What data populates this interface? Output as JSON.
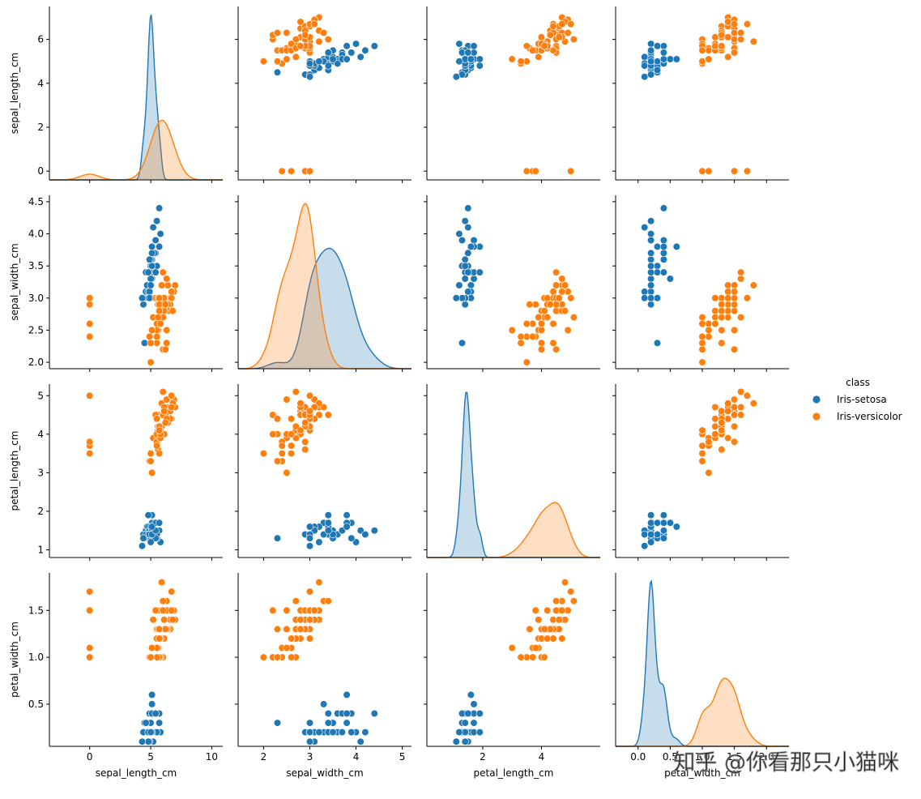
{
  "chart_data": {
    "type": "pairplot",
    "variables": [
      "sepal_length_cm",
      "sepal_width_cm",
      "petal_length_cm",
      "petal_width_cm"
    ],
    "axis_ticks": {
      "sepal_length_cm": {
        "range": [
          -3.3,
          10.9
        ],
        "ticks": [
          0,
          5,
          10
        ],
        "yrange": [
          -0.4,
          7.5
        ],
        "yticks": [
          0,
          2,
          4,
          6
        ]
      },
      "sepal_width_cm": {
        "range": [
          1.45,
          5.2
        ],
        "ticks": [
          2,
          3,
          4,
          5
        ],
        "yrange": [
          1.9,
          4.6
        ],
        "yticks": [
          2.0,
          2.5,
          3.0,
          3.5,
          4.0,
          4.5
        ]
      },
      "petal_length_cm": {
        "range": [
          0.1,
          6.0
        ],
        "ticks": [
          2,
          4
        ],
        "yrange": [
          0.8,
          5.3
        ],
        "yticks": [
          1,
          2,
          3,
          4,
          5
        ]
      },
      "petal_width_cm": {
        "range": [
          -0.35,
          2.35
        ],
        "ticks": [
          0.0,
          0.5,
          1.0,
          1.5,
          2.0
        ],
        "yrange": [
          0.05,
          1.9
        ],
        "yticks": [
          0.5,
          1.0,
          1.5
        ]
      }
    },
    "legend": {
      "title": "class",
      "position": "center-right"
    },
    "series": [
      {
        "name": "Iris-setosa",
        "color": "#1f77b4",
        "sepal_length_cm": [
          4.5,
          4.6,
          4.8,
          4.9,
          5.0,
          5.1,
          5.0,
          5.0,
          5.2,
          5.2,
          5.1,
          5.0,
          4.8,
          4.9,
          5.4,
          5.3,
          5.2,
          5.1,
          4.7,
          4.8,
          4.4,
          4.6,
          4.9,
          5.0,
          4.8,
          5.7,
          5.8,
          5.7,
          5.5,
          5.4,
          5.1,
          5.5,
          5.4,
          5.0,
          5.4,
          5.1,
          4.9,
          4.4,
          4.8,
          5.1,
          5.7,
          5.4,
          5.1,
          5.0,
          4.3
        ],
        "sepal_width_cm": [
          2.3,
          3.1,
          3.0,
          3.1,
          3.2,
          3.3,
          3.4,
          3.5,
          3.4,
          3.5,
          3.6,
          3.6,
          3.4,
          3.6,
          3.7,
          3.7,
          4.1,
          3.8,
          3.2,
          3.1,
          2.9,
          3.4,
          3.1,
          3.0,
          3.0,
          4.4,
          4.0,
          3.8,
          3.5,
          3.9,
          3.7,
          4.2,
          3.4,
          3.3,
          3.9,
          3.8,
          3.0,
          3.0,
          3.4,
          3.5,
          3.8,
          3.4,
          3.8,
          3.2,
          3.0
        ],
        "petal_length_cm": [
          1.3,
          1.5,
          1.4,
          1.5,
          1.2,
          1.7,
          1.5,
          1.3,
          1.4,
          1.5,
          1.4,
          1.4,
          1.6,
          1.4,
          1.5,
          1.5,
          1.5,
          1.9,
          1.6,
          1.6,
          1.4,
          1.4,
          1.5,
          1.6,
          1.4,
          1.5,
          1.2,
          1.7,
          1.3,
          1.7,
          1.5,
          1.4,
          1.7,
          1.4,
          1.3,
          1.9,
          1.4,
          1.3,
          1.9,
          1.4,
          1.7,
          1.5,
          1.6,
          1.2,
          1.1
        ],
        "petal_width_cm": [
          0.3,
          0.2,
          0.3,
          0.1,
          0.2,
          0.5,
          0.2,
          0.3,
          0.2,
          0.2,
          0.2,
          0.2,
          0.2,
          0.4,
          0.2,
          0.2,
          0.1,
          0.4,
          0.2,
          0.2,
          0.2,
          0.3,
          0.1,
          0.2,
          0.1,
          0.4,
          0.2,
          0.3,
          0.2,
          0.2,
          0.4,
          0.2,
          0.4,
          0.2,
          0.4,
          0.4,
          0.2,
          0.2,
          0.2,
          0.2,
          0.3,
          0.4,
          0.6,
          0.2,
          0.1
        ]
      },
      {
        "name": "Iris-versicolor",
        "color": "#ff7f0e",
        "sepal_length_cm": [
          0,
          0,
          0,
          0,
          7.0,
          6.4,
          6.9,
          5.5,
          6.5,
          5.7,
          6.3,
          4.9,
          6.6,
          5.2,
          5.0,
          5.9,
          6.0,
          6.1,
          5.6,
          6.7,
          5.6,
          5.8,
          6.2,
          5.6,
          5.9,
          6.1,
          6.3,
          6.1,
          6.4,
          6.6,
          6.8,
          6.7,
          6.0,
          5.7,
          5.5,
          5.5,
          5.8,
          6.0,
          5.4,
          6.0,
          6.7,
          6.3,
          5.6,
          5.5,
          5.5,
          6.1,
          5.8,
          5.0,
          5.6,
          5.7,
          5.7,
          6.2,
          5.1,
          5.7
        ],
        "sepal_width_cm": [
          2.4,
          2.6,
          2.9,
          3.0,
          3.2,
          3.2,
          3.1,
          2.3,
          2.8,
          2.8,
          3.3,
          2.4,
          2.9,
          2.7,
          2.0,
          3.0,
          2.2,
          2.9,
          2.9,
          3.1,
          3.0,
          2.7,
          2.2,
          2.5,
          3.2,
          2.8,
          2.5,
          2.8,
          2.9,
          3.0,
          2.8,
          3.0,
          2.9,
          2.6,
          2.4,
          2.4,
          2.7,
          2.7,
          3.0,
          3.4,
          3.1,
          2.3,
          3.0,
          2.5,
          2.6,
          3.0,
          2.6,
          2.3,
          2.7,
          3.0,
          2.9,
          2.9,
          2.5,
          2.8
        ],
        "petal_length_cm": [
          3.5,
          3.7,
          3.8,
          5.0,
          4.7,
          4.5,
          4.9,
          4.0,
          4.6,
          4.5,
          4.7,
          3.3,
          4.6,
          3.9,
          3.5,
          4.2,
          4.0,
          4.7,
          3.6,
          4.4,
          4.5,
          4.1,
          4.5,
          3.9,
          4.8,
          4.0,
          4.9,
          4.7,
          4.3,
          4.4,
          4.8,
          5.0,
          4.5,
          3.5,
          3.8,
          3.7,
          3.9,
          5.1,
          4.5,
          4.5,
          4.7,
          4.4,
          4.1,
          4.0,
          4.4,
          4.6,
          4.0,
          3.3,
          4.2,
          4.2,
          4.2,
          4.3,
          3.0,
          4.1
        ],
        "petal_width_cm": [
          1.0,
          1.1,
          1.5,
          1.7,
          1.4,
          1.5,
          1.5,
          1.3,
          1.5,
          1.3,
          1.6,
          1.0,
          1.3,
          1.4,
          1.0,
          1.5,
          1.0,
          1.4,
          1.3,
          1.4,
          1.5,
          1.0,
          1.5,
          1.1,
          1.8,
          1.3,
          1.5,
          1.2,
          1.3,
          1.4,
          1.4,
          1.7,
          1.5,
          1.0,
          1.1,
          1.0,
          1.2,
          1.6,
          1.5,
          1.6,
          1.5,
          1.3,
          1.3,
          1.3,
          1.2,
          1.4,
          1.2,
          1.0,
          1.3,
          1.2,
          1.3,
          1.3,
          1.1,
          1.3
        ]
      }
    ]
  },
  "watermark": "知乎 @你看那只小猫咪"
}
